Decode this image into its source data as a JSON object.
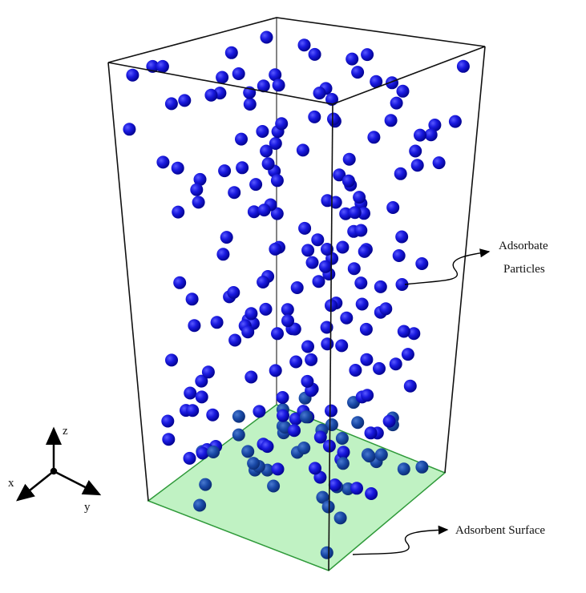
{
  "annotations": {
    "adsorbate": [
      "Adsorbate",
      "Particles"
    ],
    "adsorbent": "Adsorbent Surface"
  },
  "axes": {
    "x": "x",
    "y": "y",
    "z": "z"
  }
}
